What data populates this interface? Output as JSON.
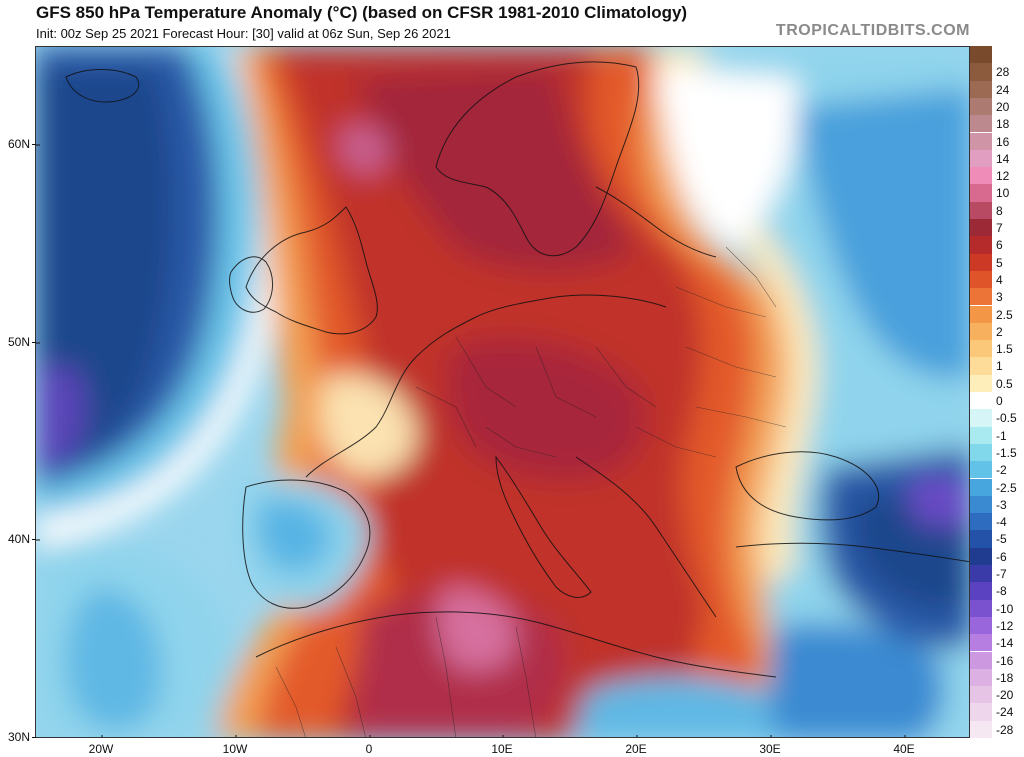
{
  "header": {
    "title": "GFS 850 hPa Temperature Anomaly (°C) (based on CFSR 1981-2010 Climatology)",
    "subtitle": "Init: 00z Sep 25 2021   Forecast Hour: [30]   valid at 06z Sun, Sep 26 2021",
    "watermark": "TROPICALTIDBITS.COM"
  },
  "axes": {
    "lat_labels": [
      "60N",
      "50N",
      "40N",
      "30N"
    ],
    "lon_labels": [
      "20W",
      "10W",
      "0",
      "10E",
      "20E",
      "30E",
      "40E"
    ]
  },
  "colorbar": {
    "levels": [
      {
        "label": "",
        "color": "#7a4a2c"
      },
      {
        "label": "28",
        "color": "#8c5a3c"
      },
      {
        "label": "24",
        "color": "#9c6a52"
      },
      {
        "label": "20",
        "color": "#ac7a70"
      },
      {
        "label": "18",
        "color": "#bc8a8e"
      },
      {
        "label": "16",
        "color": "#cf94a6"
      },
      {
        "label": "14",
        "color": "#e19ec0"
      },
      {
        "label": "12",
        "color": "#ef8db8"
      },
      {
        "label": "10",
        "color": "#d8698f"
      },
      {
        "label": "8",
        "color": "#b84a64"
      },
      {
        "label": "7",
        "color": "#9c2a36"
      },
      {
        "label": "6",
        "color": "#b52a2a"
      },
      {
        "label": "5",
        "color": "#cc3a26"
      },
      {
        "label": "4",
        "color": "#e0542a"
      },
      {
        "label": "3",
        "color": "#ec7436"
      },
      {
        "label": "2.5",
        "color": "#f39646"
      },
      {
        "label": "2",
        "color": "#f7b05e"
      },
      {
        "label": "1.5",
        "color": "#fac878"
      },
      {
        "label": "1",
        "color": "#fcdc98"
      },
      {
        "label": "0.5",
        "color": "#fdeeba"
      },
      {
        "label": "0",
        "color": "#ffffff"
      },
      {
        "label": "-0.5",
        "color": "#d6f5f6"
      },
      {
        "label": "-1",
        "color": "#a8eaf0"
      },
      {
        "label": "-1.5",
        "color": "#80d8ea"
      },
      {
        "label": "-2",
        "color": "#62c2e8"
      },
      {
        "label": "-2.5",
        "color": "#48a6de"
      },
      {
        "label": "-3",
        "color": "#3a8ad2"
      },
      {
        "label": "-4",
        "color": "#2e6cc0"
      },
      {
        "label": "-5",
        "color": "#2452a8"
      },
      {
        "label": "-6",
        "color": "#203c90"
      },
      {
        "label": "-7",
        "color": "#3a3aa8"
      },
      {
        "label": "-8",
        "color": "#5a42c0"
      },
      {
        "label": "-10",
        "color": "#7a52d0"
      },
      {
        "label": "-12",
        "color": "#9a66dc"
      },
      {
        "label": "-14",
        "color": "#b67ee0"
      },
      {
        "label": "-16",
        "color": "#cc98e0"
      },
      {
        "label": "-18",
        "color": "#dcb0e2"
      },
      {
        "label": "-20",
        "color": "#e6c4e6"
      },
      {
        "label": "-24",
        "color": "#eed6ec"
      },
      {
        "label": "-28",
        "color": "#f5e8f2"
      }
    ]
  },
  "colors": {
    "ocean_cold_deep": "#1f4a8f",
    "cold": "#3f8ad6",
    "cool": "#8fd4ec",
    "neutral": "#ffffff",
    "warm_light": "#fbd48a",
    "warm": "#ee7a3a",
    "hot": "#c9302a",
    "very_hot": "#a8283a",
    "extreme": "#d06a9a"
  }
}
